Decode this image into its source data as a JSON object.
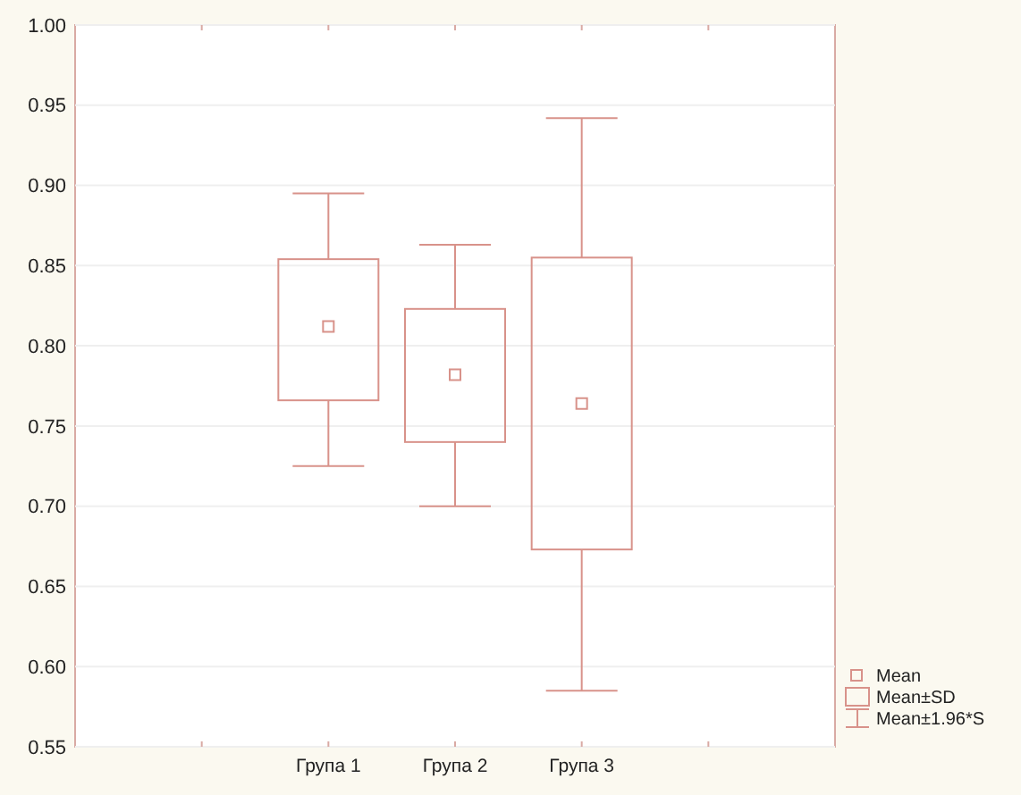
{
  "chart_data": {
    "type": "box",
    "categories": [
      null,
      "Група 1",
      "Група 2",
      "Група 3",
      null
    ],
    "boxes": [
      null,
      {
        "low": 0.725,
        "q1": 0.766,
        "q3": 0.854,
        "high": 0.895,
        "mean": 0.812
      },
      {
        "low": 0.7,
        "q1": 0.74,
        "q3": 0.823,
        "high": 0.863,
        "mean": 0.782
      },
      {
        "low": 0.585,
        "q1": 0.673,
        "q3": 0.855,
        "high": 0.942,
        "mean": 0.764
      },
      null
    ],
    "color": "#d8928a",
    "ylim": [
      0.55,
      1.0
    ],
    "yticks": [
      {
        "value": 0.55,
        "label": "0.55"
      },
      {
        "value": 0.6,
        "label": "0.60"
      },
      {
        "value": 0.65,
        "label": "0.65"
      },
      {
        "value": 0.7,
        "label": "0.70"
      },
      {
        "value": 0.75,
        "label": "0.75"
      },
      {
        "value": 0.8,
        "label": "0.80"
      },
      {
        "value": 0.85,
        "label": "0.85"
      },
      {
        "value": 0.9,
        "label": "0.90"
      },
      {
        "value": 0.95,
        "label": "0.95"
      },
      {
        "value": 1.0,
        "label": "1.00"
      }
    ],
    "grid": "y",
    "annotations": [
      "Mean",
      "Mean±SD",
      "Mean±1.96*S"
    ]
  }
}
